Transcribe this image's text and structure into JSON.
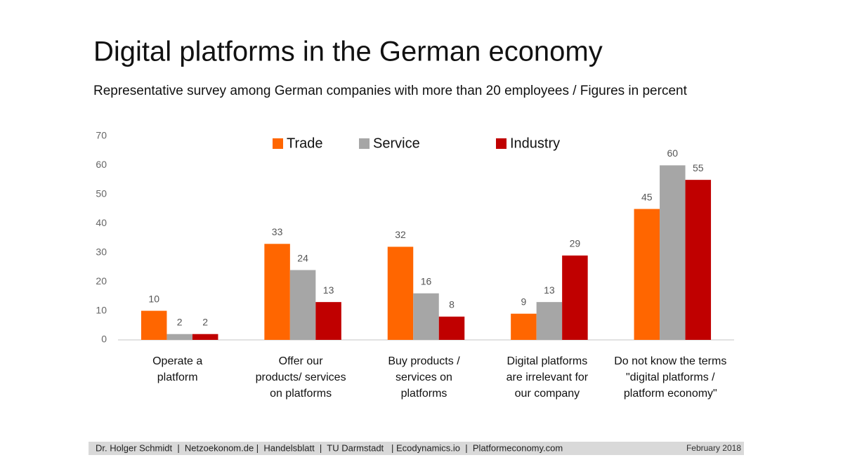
{
  "chart_data": {
    "type": "bar",
    "title": "Digital platforms in the German economy",
    "subtitle": "Representative survey among German companies with more than 20 employees / Figures in percent",
    "categories": [
      "Operate a\nplatform",
      "Offer our\nproducts/ services\non platforms",
      "Buy products /\nservices on\nplatforms",
      "Digital platforms\nare irrelevant for\nour company",
      "Do not know the terms\n\"digital platforms /\nplatform economy\""
    ],
    "series": [
      {
        "name": "Trade",
        "color": "#ff6600",
        "values": [
          10,
          33,
          32,
          9,
          45
        ]
      },
      {
        "name": "Service",
        "color": "#a6a6a6",
        "values": [
          2,
          24,
          16,
          13,
          60
        ]
      },
      {
        "name": "Industry",
        "color": "#c00000",
        "values": [
          2,
          13,
          8,
          29,
          55
        ]
      }
    ],
    "ylim": [
      0,
      70
    ],
    "yticks": [
      0,
      10,
      20,
      30,
      40,
      50,
      60,
      70
    ],
    "grid": false,
    "legend": "top",
    "footer": "Dr. Holger Schmidt  |  Netzoekonom.de |  Handelsblatt  |  TU Darmstadt   | Ecodynamics.io  |  Platformeconomy.com",
    "date": "February 2018"
  }
}
